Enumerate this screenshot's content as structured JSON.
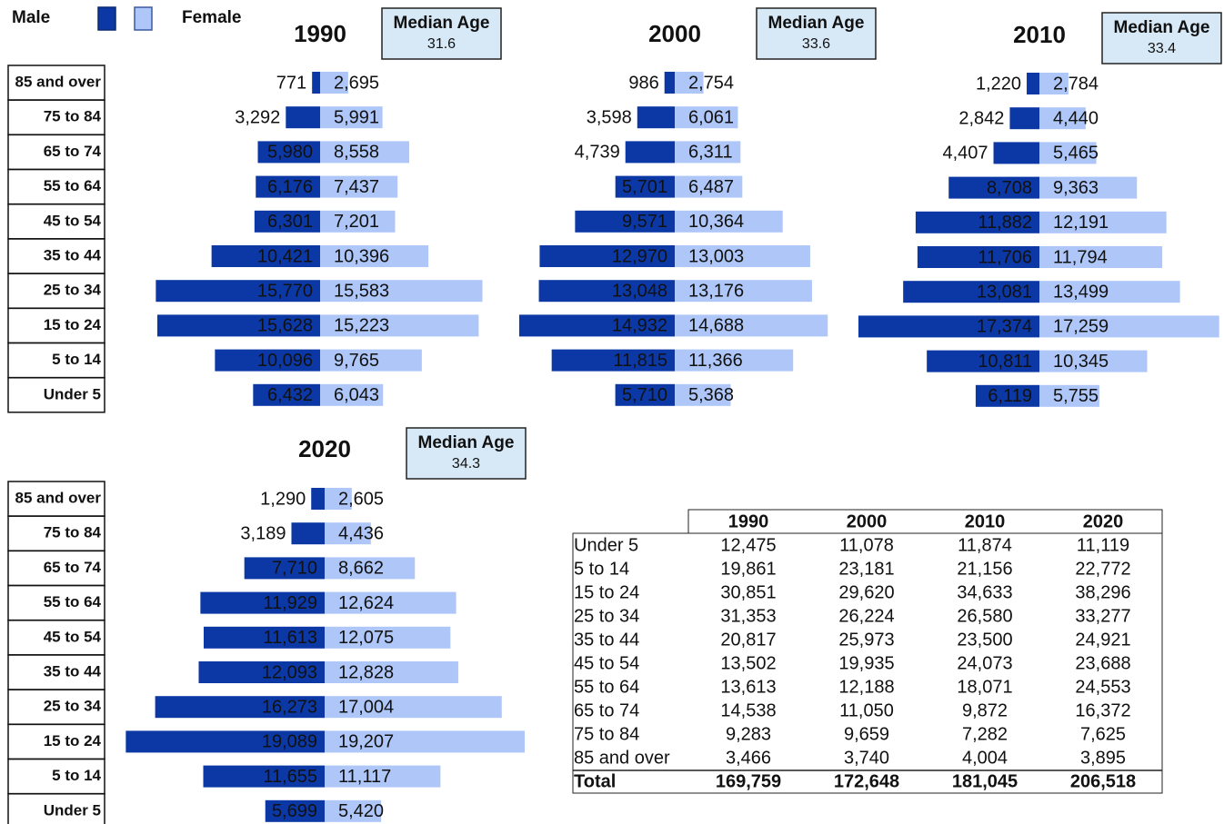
{
  "chart_data": [
    {
      "type": "pyramid",
      "title": "1990",
      "median_age": {
        "label": "Median Age",
        "value": 31.6
      },
      "categories": [
        "85 and over",
        "75 to 84",
        "65 to 74",
        "55 to 64",
        "45 to 54",
        "35 to 44",
        "25 to 34",
        "15 to 24",
        "5 to 14",
        "Under 5"
      ],
      "series": [
        {
          "name": "Male",
          "color": "#0c38a6",
          "values": [
            771,
            3292,
            5980,
            6176,
            6301,
            10421,
            15770,
            15628,
            10096,
            6432
          ],
          "value_labels": [
            "771",
            "3,292",
            "5,980",
            "6,176",
            "6,301",
            "10,421",
            "15,770",
            "15,628",
            "10,096",
            "6,432"
          ]
        },
        {
          "name": "Female",
          "color": "#aec6f8",
          "values": [
            2695,
            5991,
            8558,
            7437,
            7201,
            10396,
            15583,
            15223,
            9765,
            6043
          ],
          "value_labels": [
            "2,695",
            "5,991",
            "8,558",
            "7,437",
            "7,201",
            "10,396",
            "15,583",
            "15,223",
            "9,765",
            "6,043"
          ]
        }
      ]
    },
    {
      "type": "pyramid",
      "title": "2000",
      "median_age": {
        "label": "Median Age",
        "value": 33.6
      },
      "series": [
        {
          "color": "#0c38a6",
          "values": [
            986,
            3598,
            4739,
            5701,
            9571,
            12970,
            13048,
            14932,
            11815,
            5710
          ],
          "value_labels": [
            "986",
            "3,598",
            "4,739",
            "5,701",
            "9,571",
            "12,970",
            "13,048",
            "14,932",
            "11,815",
            "5,710"
          ]
        },
        {
          "color": "#aec6f8",
          "values": [
            2754,
            6061,
            6311,
            6487,
            10364,
            13003,
            13176,
            14688,
            11366,
            5368
          ],
          "value_labels": [
            "2,754",
            "6,061",
            "6,311",
            "6,487",
            "10,364",
            "13,003",
            "13,176",
            "14,688",
            "11,366",
            "5,368"
          ]
        }
      ]
    },
    {
      "type": "pyramid",
      "title": "2010",
      "median_age": {
        "label": "Median Age",
        "value": 33.4
      },
      "series": [
        {
          "color": "#0c38a6",
          "values": [
            1220,
            2842,
            4407,
            8708,
            11882,
            11706,
            13081,
            17374,
            10811,
            6119
          ],
          "value_labels": [
            "1,220",
            "2,842",
            "4,407",
            "8,708",
            "11,882",
            "11,706",
            "13,081",
            "17,374",
            "10,811",
            "6,119"
          ]
        },
        {
          "color": "#aec6f8",
          "values": [
            2784,
            4440,
            5465,
            9363,
            12191,
            11794,
            13499,
            17259,
            10345,
            5755
          ],
          "value_labels": [
            "2,784",
            "4,440",
            "5,465",
            "9,363",
            "12,191",
            "11,794",
            "13,499",
            "17,259",
            "10,345",
            "5,755"
          ]
        }
      ]
    },
    {
      "type": "pyramid",
      "title": "2020",
      "median_age": {
        "label": "Median Age",
        "value": 34.3
      },
      "categories": [
        "85 and over",
        "75 to 84",
        "65 to 74",
        "55 to 64",
        "45 to 54",
        "35 to 44",
        "25 to 34",
        "15 to 24",
        "5 to 14",
        "Under 5"
      ],
      "series": [
        {
          "color": "#0c38a6",
          "values": [
            1290,
            3189,
            7710,
            11929,
            11613,
            12093,
            16273,
            19089,
            11655,
            5699
          ],
          "value_labels": [
            "1,290",
            "3,189",
            "7,710",
            "11,929",
            "11,613",
            "12,093",
            "16,273",
            "19,089",
            "11,655",
            "5,699"
          ]
        },
        {
          "color": "#aec6f8",
          "values": [
            2605,
            4436,
            8662,
            12624,
            12075,
            12828,
            17004,
            19207,
            11117,
            5420
          ],
          "value_labels": [
            "2,605",
            "4,436",
            "8,662",
            "12,624",
            "12,075",
            "12,828",
            "17,004",
            "19,207",
            "11,117",
            "5,420"
          ]
        }
      ]
    }
  ],
  "table": {
    "columns": [
      "1990",
      "2000",
      "2010",
      "2020"
    ],
    "rows": [
      {
        "label": "Under 5",
        "cells": [
          "12,475",
          "11,078",
          "11,874",
          "11,119"
        ]
      },
      {
        "label": "5 to 14",
        "cells": [
          "19,861",
          "23,181",
          "21,156",
          "22,772"
        ]
      },
      {
        "label": "15 to 24",
        "cells": [
          "30,851",
          "29,620",
          "34,633",
          "38,296"
        ]
      },
      {
        "label": "25 to 34",
        "cells": [
          "31,353",
          "26,224",
          "26,580",
          "33,277"
        ]
      },
      {
        "label": "35 to 44",
        "cells": [
          "20,817",
          "25,973",
          "23,500",
          "24,921"
        ]
      },
      {
        "label": "45 to 54",
        "cells": [
          "13,502",
          "19,935",
          "24,073",
          "23,688"
        ]
      },
      {
        "label": "55 to 64",
        "cells": [
          "13,613",
          "12,188",
          "18,071",
          "24,553"
        ]
      },
      {
        "label": "65 to 74",
        "cells": [
          "14,538",
          "11,050",
          "9,872",
          "16,372"
        ]
      },
      {
        "label": "75 to 84",
        "cells": [
          "9,283",
          "9,659",
          "7,282",
          "7,625"
        ]
      },
      {
        "label": "85 and over",
        "cells": [
          "3,466",
          "3,740",
          "4,004",
          "3,895"
        ]
      }
    ],
    "total": {
      "label": "Total",
      "cells": [
        "169,759",
        "172,648",
        "181,045",
        "206,518"
      ]
    }
  }
}
